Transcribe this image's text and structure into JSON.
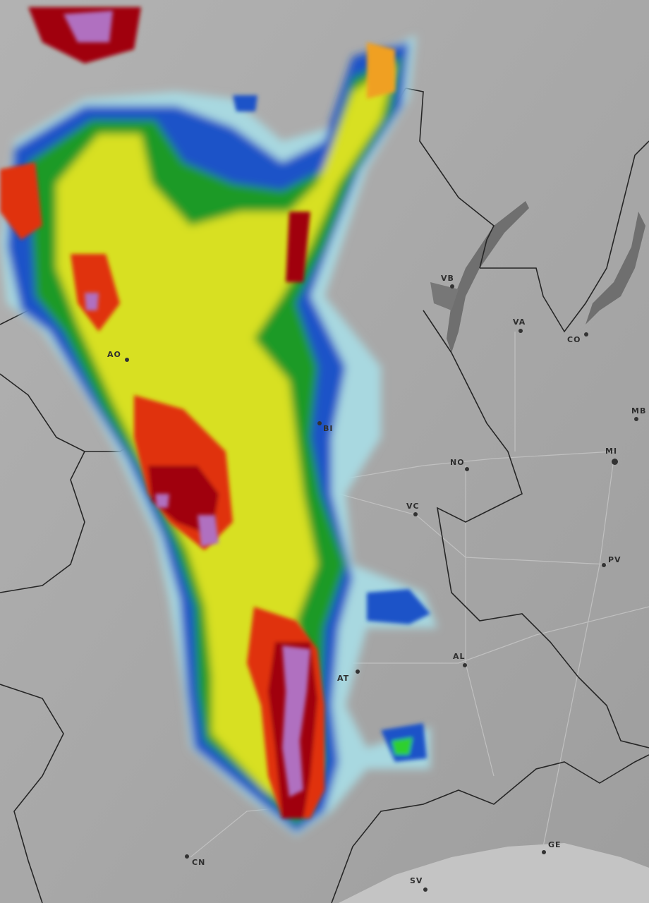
{
  "map": {
    "type": "weather radar reflectivity",
    "basemap_colors": {
      "land": "#a9a9a9",
      "lake": "#6f6f6f",
      "border": "#2a2a2a",
      "road": "#bdbdbd"
    },
    "radar_scale_colors": [
      "#a8d8e0",
      "#4fb8d8",
      "#1d52c8",
      "#1a9a28",
      "#2fd02f",
      "#d8e020",
      "#f0a020",
      "#e03010",
      "#a00010",
      "#b070c0"
    ],
    "cities": [
      {
        "id": "ao",
        "label": "AO"
      },
      {
        "id": "bi",
        "label": "BI"
      },
      {
        "id": "vb",
        "label": "VB"
      },
      {
        "id": "va",
        "label": "VA"
      },
      {
        "id": "co",
        "label": "CO"
      },
      {
        "id": "mb",
        "label": "MB"
      },
      {
        "id": "mi",
        "label": "MI"
      },
      {
        "id": "no",
        "label": "NO"
      },
      {
        "id": "vc",
        "label": "VC"
      },
      {
        "id": "pv",
        "label": "PV"
      },
      {
        "id": "al",
        "label": "AL"
      },
      {
        "id": "at",
        "label": "AT"
      },
      {
        "id": "cn",
        "label": "CN"
      },
      {
        "id": "ge",
        "label": "GE"
      },
      {
        "id": "sv",
        "label": "SV"
      }
    ]
  }
}
